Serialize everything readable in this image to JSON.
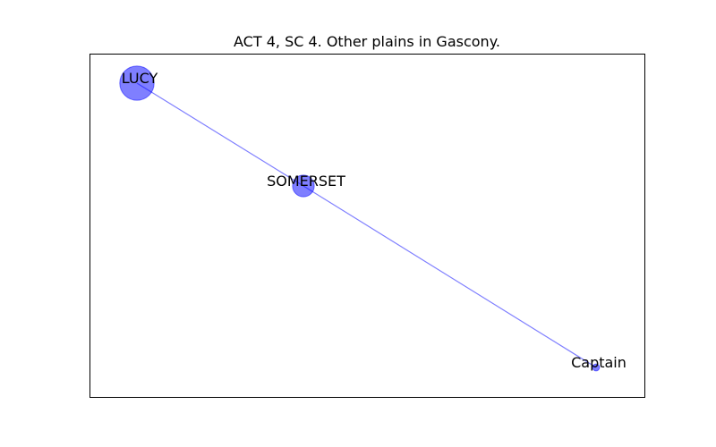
{
  "title": "ACT 4, SC 4. Other plains in Gascony.",
  "colors": {
    "node_fill": "#0000ff",
    "node_opacity": 0.5,
    "edge": "#0000ff",
    "edge_opacity": 0.5,
    "frame": "#000000",
    "background": "#ffffff"
  },
  "nodes": [
    {
      "id": "LUCY",
      "label": "LUCY",
      "weight": 5
    },
    {
      "id": "SOMERSET",
      "label": "SOMERSET",
      "weight": 2
    },
    {
      "id": "Captain",
      "label": "Captain",
      "weight": 0.2
    }
  ],
  "edges": [
    {
      "source": "LUCY",
      "target": "SOMERSET"
    },
    {
      "source": "SOMERSET",
      "target": "Captain"
    }
  ]
}
